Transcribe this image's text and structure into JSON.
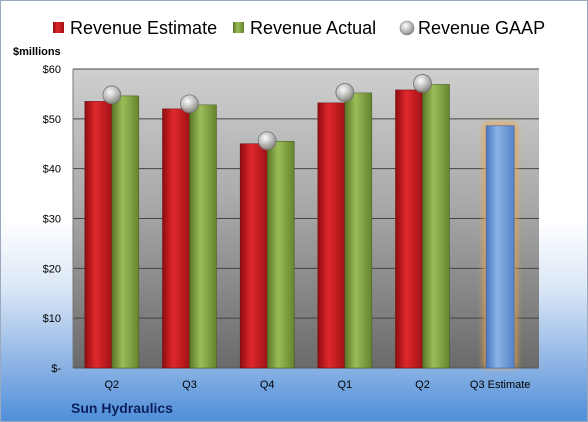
{
  "colors": {
    "estimate": "#c0181c",
    "actual": "#7a9a3e",
    "gaap": "#b3b3b3",
    "projection": "#6f9ad6",
    "projection_glow": "#f0a64a"
  },
  "chart_data": {
    "type": "bar",
    "unit_label": "$millions",
    "company": "Sun Hydraulics",
    "categories": [
      "Q2",
      "Q3",
      "Q4",
      "Q1",
      "Q2",
      "Q3 Estimate"
    ],
    "y_ticks": [
      "$-",
      "$10",
      "$20",
      "$30",
      "$40",
      "$50",
      "$60"
    ],
    "ylim": [
      0,
      60
    ],
    "grid": true,
    "legend_position": "top",
    "series": [
      {
        "name": "Revenue Estimate",
        "kind": "bar",
        "values": [
          53.5,
          52.0,
          45.0,
          53.2,
          55.8,
          48.6
        ]
      },
      {
        "name": "Revenue Actual",
        "kind": "bar",
        "values": [
          54.6,
          52.8,
          45.5,
          55.2,
          56.9,
          null
        ]
      },
      {
        "name": "Revenue GAAP",
        "kind": "marker",
        "values": [
          54.8,
          53.0,
          45.6,
          55.3,
          57.1,
          null
        ]
      }
    ]
  }
}
